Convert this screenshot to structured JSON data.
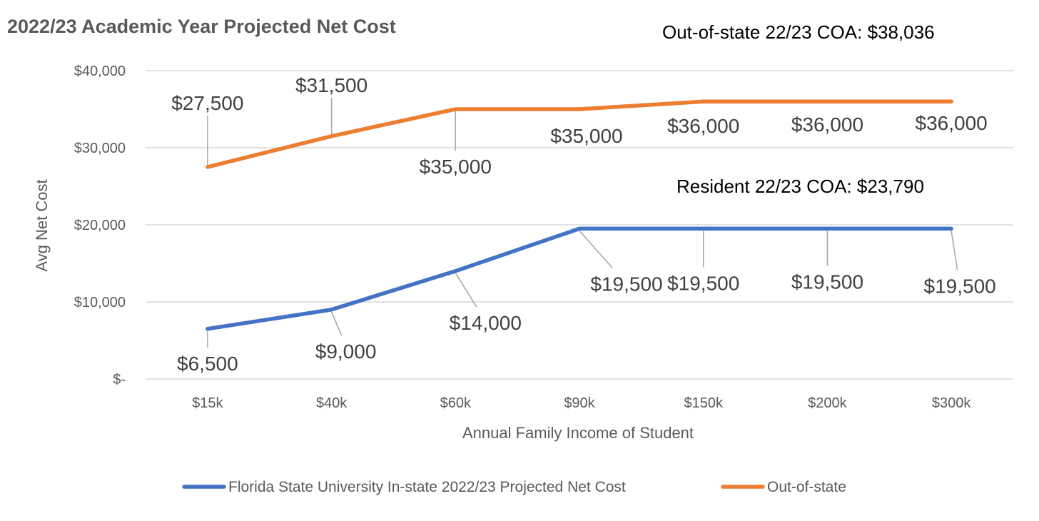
{
  "chart_data": {
    "type": "line",
    "title": "2022/23 Academic Year Projected Net Cost",
    "annotations": [
      "Out-of-state 22/23 COA: $38,036",
      "Resident 22/23 COA: $23,790"
    ],
    "xlabel": "Annual Family Income of Student",
    "ylabel": "Avg Net Cost",
    "categories": [
      "$15k",
      "$40k",
      "$60k",
      "$90k",
      "$150k",
      "$200k",
      "$300k"
    ],
    "ylim": [
      0,
      40000
    ],
    "yticks": [
      0,
      10000,
      20000,
      30000,
      40000
    ],
    "ytick_labels": [
      "$-",
      "$10,000",
      "$20,000",
      "$30,000",
      "$40,000"
    ],
    "grid": true,
    "legend_position": "bottom",
    "series": [
      {
        "name": "Florida State University In-state 2022/23 Projected Net Cost",
        "color": "#4472C4",
        "values": [
          6500,
          9000,
          14000,
          19500,
          19500,
          19500,
          19500
        ],
        "labels": [
          "$6,500",
          "$9,000",
          "$14,000",
          "$19,500",
          "$19,500",
          "$19,500",
          "$19,500"
        ]
      },
      {
        "name": "Out-of-state",
        "color": "#ED7D31",
        "values": [
          27500,
          31500,
          35000,
          35000,
          36000,
          36000,
          36000
        ],
        "labels": [
          "$27,500",
          "$31,500",
          "$35,000",
          "$35,000",
          "$36,000",
          "$36,000",
          "$36,000"
        ]
      }
    ]
  }
}
